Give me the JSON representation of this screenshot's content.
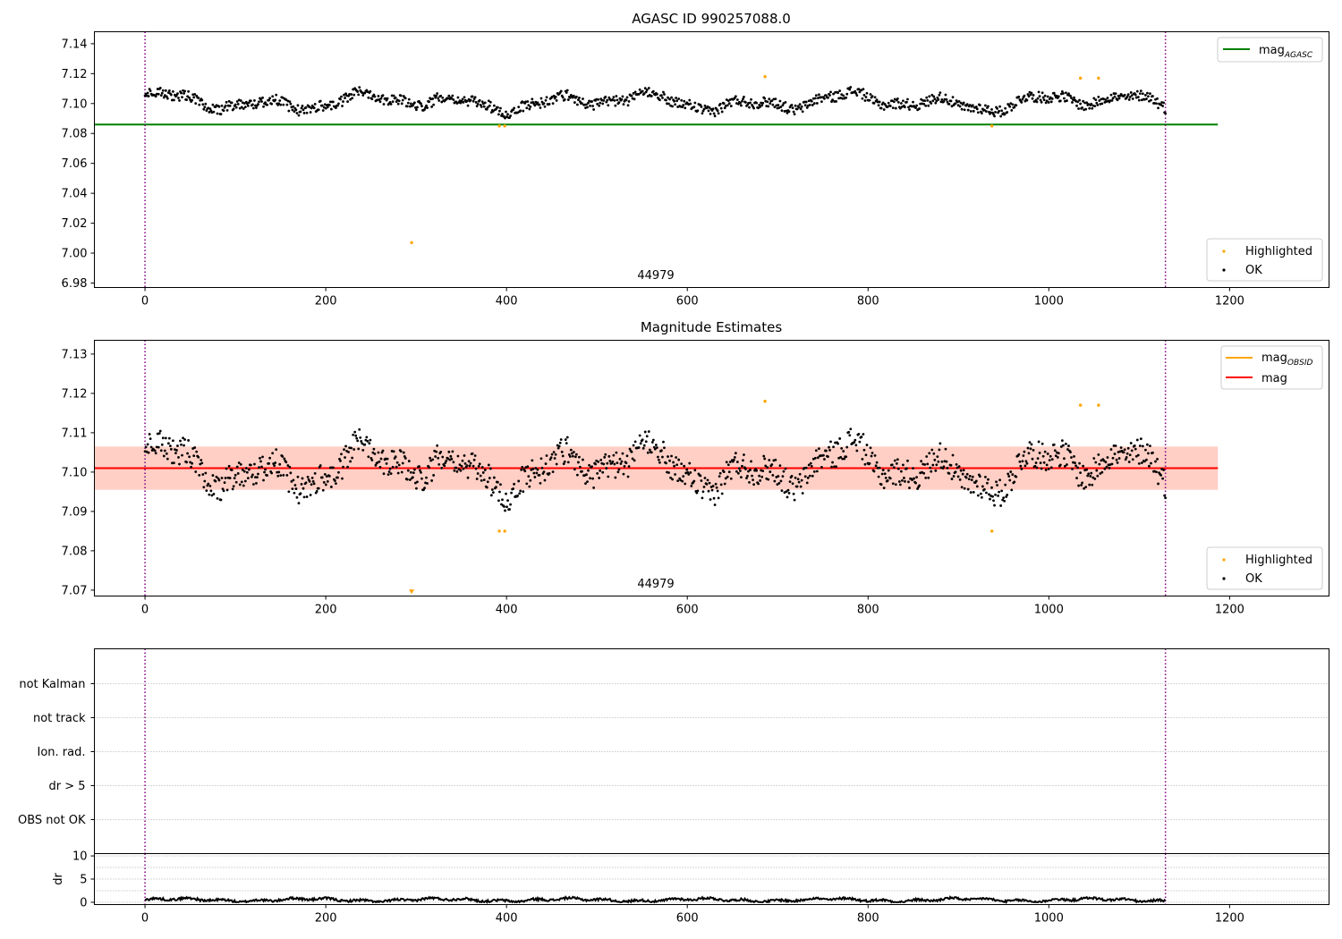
{
  "chart_data": [
    {
      "type": "scatter",
      "title": "AGASC ID 990257088.0",
      "xlim": [
        -56,
        1310
      ],
      "ylim": [
        6.977,
        7.148
      ],
      "xticks": [
        "0",
        "200",
        "400",
        "600",
        "800",
        "1000",
        "1200"
      ],
      "yticks": [
        "6.98",
        "7.00",
        "7.02",
        "7.04",
        "7.06",
        "7.08",
        "7.10",
        "7.12",
        "7.14"
      ],
      "annotation": "44979",
      "vlines_x": [
        0,
        1129
      ],
      "hline": {
        "name": "mag",
        "subscript": "AGASC",
        "value": 7.086,
        "x_range": [
          -56,
          1187
        ],
        "color": "#008000"
      },
      "ok_points": {
        "name": "OK",
        "color": "#000000",
        "n": 1129,
        "x_range": [
          0,
          1129
        ],
        "baseline": 7.101,
        "amplitude": 0.008,
        "noise": 0.0035
      },
      "highlighted_points": {
        "name": "Highlighted",
        "color": "#ffa500",
        "points": [
          [
            295,
            7.007
          ],
          [
            392,
            7.085
          ],
          [
            398,
            7.085
          ],
          [
            686,
            7.118
          ],
          [
            937,
            7.085
          ],
          [
            1035,
            7.117
          ],
          [
            1055,
            7.117
          ]
        ]
      },
      "legend_lines_position": "upper right",
      "legend_points_position": "lower right"
    },
    {
      "type": "scatter",
      "title": "Magnitude Estimates",
      "xlim": [
        -56,
        1310
      ],
      "ylim": [
        7.0685,
        7.1335
      ],
      "xticks": [
        "0",
        "200",
        "400",
        "600",
        "800",
        "1000",
        "1200"
      ],
      "yticks": [
        "7.07",
        "7.08",
        "7.09",
        "7.10",
        "7.11",
        "7.12",
        "7.13"
      ],
      "annotation": "44979",
      "vlines_x": [
        0,
        1129
      ],
      "hlines": [
        {
          "name": "mag",
          "subscript": "OBSID",
          "value": 7.101,
          "color": "#ffa500",
          "band": [
            7.0955,
            7.1065
          ],
          "band_color": "#ffa07a"
        },
        {
          "name": "mag",
          "subscript": "",
          "value": 7.101,
          "color": "#ff0000",
          "band": [
            7.0955,
            7.1065
          ],
          "band_color": "#ffc0cb"
        }
      ],
      "ok_points": {
        "name": "OK",
        "color": "#000000",
        "n": 1129,
        "x_range": [
          0,
          1129
        ],
        "baseline": 7.101,
        "amplitude": 0.008,
        "noise": 0.0035
      },
      "highlighted_points": {
        "name": "Highlighted",
        "color": "#ffa500",
        "points": [
          [
            392,
            7.085
          ],
          [
            398,
            7.085
          ],
          [
            686,
            7.118
          ],
          [
            937,
            7.085
          ],
          [
            1035,
            7.117
          ],
          [
            1055,
            7.117
          ]
        ]
      },
      "offscale_marker": {
        "x": 295,
        "y": 7.0695,
        "color": "#ffa500"
      },
      "legend_lines_position": "upper right",
      "legend_points_position": "lower right"
    },
    {
      "type": "scatter",
      "title": "",
      "xlim": [
        -56,
        1310
      ],
      "categories": [
        "not Kalman",
        "not track",
        "Ion. rad.",
        "dr > 5",
        "OBS not OK"
      ],
      "vlines_x": [
        0,
        1129
      ],
      "flag_points": []
    },
    {
      "type": "line",
      "title": "",
      "ylabel": "dr",
      "xlim": [
        -56,
        1310
      ],
      "ylim": [
        -0.5,
        10.5
      ],
      "yticks": [
        "0",
        "5",
        "10"
      ],
      "xticks": [
        "0",
        "200",
        "400",
        "600",
        "800",
        "1000",
        "1200"
      ],
      "vlines_x": [
        0,
        1129
      ],
      "series": {
        "color": "#000000",
        "n": 1129,
        "x_range": [
          0,
          1129
        ],
        "baseline": 0.5,
        "max": 1.3
      }
    }
  ]
}
